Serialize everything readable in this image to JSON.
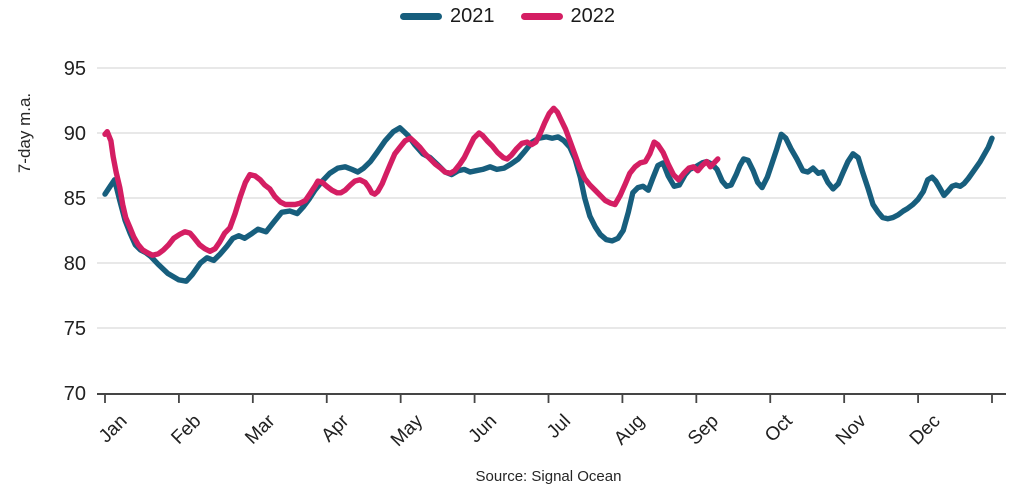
{
  "source": "Source: Signal Ocean",
  "chart_data": {
    "type": "line",
    "title": "",
    "xlabel": "",
    "ylabel": "7-day m.a.",
    "x_unit": "months (0 = start of Jan, 12 = end of Dec)",
    "x_tick_labels": [
      "Jan",
      "Feb",
      "Mar",
      "Apr",
      "May",
      "Jun",
      "Jul",
      "Aug",
      "Sep",
      "Oct",
      "Nov",
      "Dec"
    ],
    "y_ticks": [
      70,
      75,
      80,
      85,
      90,
      95
    ],
    "ylim": [
      70,
      95
    ],
    "xlim": [
      0,
      12
    ],
    "grid": "horizontal",
    "legend_position": "top-center",
    "colors": {
      "grid": "#D9D9D9",
      "axis": "#454545",
      "text": "#212121"
    },
    "series": [
      {
        "name": "2021",
        "color": "#175E7D",
        "points": [
          [
            0.0,
            85.3
          ],
          [
            0.07,
            85.9
          ],
          [
            0.13,
            86.4
          ],
          [
            0.2,
            84.8
          ],
          [
            0.27,
            83.3
          ],
          [
            0.34,
            82.3
          ],
          [
            0.41,
            81.4
          ],
          [
            0.48,
            81.0
          ],
          [
            0.55,
            80.8
          ],
          [
            0.62,
            80.5
          ],
          [
            0.72,
            79.9
          ],
          [
            0.85,
            79.2
          ],
          [
            1.0,
            78.7
          ],
          [
            1.1,
            78.6
          ],
          [
            1.18,
            79.1
          ],
          [
            1.29,
            80.0
          ],
          [
            1.38,
            80.4
          ],
          [
            1.47,
            80.2
          ],
          [
            1.56,
            80.7
          ],
          [
            1.65,
            81.3
          ],
          [
            1.73,
            81.9
          ],
          [
            1.81,
            82.1
          ],
          [
            1.89,
            81.9
          ],
          [
            1.97,
            82.2
          ],
          [
            2.07,
            82.6
          ],
          [
            2.18,
            82.4
          ],
          [
            2.29,
            83.2
          ],
          [
            2.39,
            83.9
          ],
          [
            2.5,
            84.0
          ],
          [
            2.6,
            83.8
          ],
          [
            2.68,
            84.3
          ],
          [
            2.76,
            84.9
          ],
          [
            2.84,
            85.6
          ],
          [
            2.94,
            86.3
          ],
          [
            3.04,
            86.9
          ],
          [
            3.15,
            87.3
          ],
          [
            3.25,
            87.4
          ],
          [
            3.34,
            87.2
          ],
          [
            3.42,
            87.0
          ],
          [
            3.5,
            87.3
          ],
          [
            3.59,
            87.8
          ],
          [
            3.68,
            88.5
          ],
          [
            3.79,
            89.4
          ],
          [
            3.9,
            90.1
          ],
          [
            3.99,
            90.4
          ],
          [
            4.1,
            89.8
          ],
          [
            4.19,
            89.1
          ],
          [
            4.3,
            88.4
          ],
          [
            4.4,
            88.1
          ],
          [
            4.51,
            87.5
          ],
          [
            4.6,
            87.0
          ],
          [
            4.69,
            86.8
          ],
          [
            4.78,
            87.1
          ],
          [
            4.86,
            87.2
          ],
          [
            4.94,
            87.0
          ],
          [
            5.02,
            87.1
          ],
          [
            5.11,
            87.2
          ],
          [
            5.21,
            87.4
          ],
          [
            5.3,
            87.2
          ],
          [
            5.4,
            87.3
          ],
          [
            5.49,
            87.6
          ],
          [
            5.59,
            88.0
          ],
          [
            5.68,
            88.6
          ],
          [
            5.78,
            89.3
          ],
          [
            5.87,
            89.6
          ],
          [
            5.97,
            89.7
          ],
          [
            6.05,
            89.6
          ],
          [
            6.13,
            89.7
          ],
          [
            6.21,
            89.4
          ],
          [
            6.29,
            88.9
          ],
          [
            6.36,
            88.0
          ],
          [
            6.43,
            86.6
          ],
          [
            6.49,
            85.0
          ],
          [
            6.56,
            83.6
          ],
          [
            6.63,
            82.8
          ],
          [
            6.7,
            82.2
          ],
          [
            6.78,
            81.8
          ],
          [
            6.86,
            81.7
          ],
          [
            6.94,
            81.9
          ],
          [
            7.01,
            82.5
          ],
          [
            7.08,
            83.9
          ],
          [
            7.14,
            85.4
          ],
          [
            7.21,
            85.8
          ],
          [
            7.28,
            85.9
          ],
          [
            7.35,
            85.6
          ],
          [
            7.41,
            86.5
          ],
          [
            7.48,
            87.5
          ],
          [
            7.55,
            87.7
          ],
          [
            7.62,
            86.7
          ],
          [
            7.7,
            85.9
          ],
          [
            7.77,
            86.0
          ],
          [
            7.85,
            86.8
          ],
          [
            7.91,
            87.2
          ],
          [
            7.99,
            87.4
          ],
          [
            8.08,
            87.7
          ],
          [
            8.14,
            87.8
          ],
          [
            8.21,
            87.6
          ],
          [
            8.28,
            87.2
          ],
          [
            8.35,
            86.3
          ],
          [
            8.41,
            85.9
          ],
          [
            8.47,
            86.0
          ],
          [
            8.54,
            86.8
          ],
          [
            8.59,
            87.5
          ],
          [
            8.64,
            88.0
          ],
          [
            8.7,
            87.9
          ],
          [
            8.77,
            87.1
          ],
          [
            8.83,
            86.2
          ],
          [
            8.89,
            85.8
          ],
          [
            8.96,
            86.6
          ],
          [
            9.02,
            87.6
          ],
          [
            9.09,
            88.8
          ],
          [
            9.15,
            89.9
          ],
          [
            9.21,
            89.6
          ],
          [
            9.28,
            88.8
          ],
          [
            9.36,
            88.0
          ],
          [
            9.44,
            87.1
          ],
          [
            9.51,
            87.0
          ],
          [
            9.58,
            87.3
          ],
          [
            9.65,
            86.9
          ],
          [
            9.71,
            87.0
          ],
          [
            9.78,
            86.2
          ],
          [
            9.85,
            85.7
          ],
          [
            9.92,
            86.1
          ],
          [
            9.98,
            86.9
          ],
          [
            10.05,
            87.8
          ],
          [
            10.12,
            88.4
          ],
          [
            10.19,
            88.1
          ],
          [
            10.25,
            87.0
          ],
          [
            10.32,
            85.8
          ],
          [
            10.39,
            84.5
          ],
          [
            10.46,
            83.9
          ],
          [
            10.52,
            83.5
          ],
          [
            10.59,
            83.4
          ],
          [
            10.66,
            83.5
          ],
          [
            10.73,
            83.7
          ],
          [
            10.8,
            84.0
          ],
          [
            10.86,
            84.2
          ],
          [
            10.93,
            84.5
          ],
          [
            11.0,
            84.9
          ],
          [
            11.07,
            85.5
          ],
          [
            11.13,
            86.4
          ],
          [
            11.19,
            86.6
          ],
          [
            11.24,
            86.3
          ],
          [
            11.3,
            85.7
          ],
          [
            11.35,
            85.2
          ],
          [
            11.4,
            85.5
          ],
          [
            11.46,
            85.9
          ],
          [
            11.51,
            86.0
          ],
          [
            11.57,
            85.9
          ],
          [
            11.62,
            86.1
          ],
          [
            11.68,
            86.5
          ],
          [
            11.73,
            86.9
          ],
          [
            11.78,
            87.3
          ],
          [
            11.84,
            87.8
          ],
          [
            11.89,
            88.3
          ],
          [
            11.95,
            88.9
          ],
          [
            12.0,
            89.6
          ]
        ]
      },
      {
        "name": "2022",
        "color": "#D41E63",
        "points": [
          [
            0.0,
            89.9
          ],
          [
            0.03,
            90.1
          ],
          [
            0.08,
            89.4
          ],
          [
            0.11,
            88.2
          ],
          [
            0.15,
            87.0
          ],
          [
            0.2,
            85.8
          ],
          [
            0.24,
            84.5
          ],
          [
            0.28,
            83.5
          ],
          [
            0.34,
            82.7
          ],
          [
            0.39,
            82.0
          ],
          [
            0.45,
            81.4
          ],
          [
            0.51,
            81.0
          ],
          [
            0.57,
            80.8
          ],
          [
            0.64,
            80.6
          ],
          [
            0.72,
            80.7
          ],
          [
            0.79,
            81.0
          ],
          [
            0.86,
            81.4
          ],
          [
            0.93,
            81.9
          ],
          [
            1.01,
            82.2
          ],
          [
            1.08,
            82.4
          ],
          [
            1.15,
            82.3
          ],
          [
            1.21,
            81.9
          ],
          [
            1.28,
            81.4
          ],
          [
            1.35,
            81.1
          ],
          [
            1.42,
            80.9
          ],
          [
            1.49,
            81.1
          ],
          [
            1.55,
            81.6
          ],
          [
            1.62,
            82.3
          ],
          [
            1.69,
            82.7
          ],
          [
            1.76,
            83.8
          ],
          [
            1.83,
            85.1
          ],
          [
            1.9,
            86.2
          ],
          [
            1.96,
            86.8
          ],
          [
            2.03,
            86.7
          ],
          [
            2.1,
            86.4
          ],
          [
            2.16,
            86.0
          ],
          [
            2.23,
            85.7
          ],
          [
            2.3,
            85.1
          ],
          [
            2.37,
            84.7
          ],
          [
            2.44,
            84.5
          ],
          [
            2.57,
            84.5
          ],
          [
            2.64,
            84.6
          ],
          [
            2.71,
            84.8
          ],
          [
            2.77,
            85.3
          ],
          [
            2.84,
            85.9
          ],
          [
            2.88,
            86.3
          ],
          [
            2.94,
            86.2
          ],
          [
            3.0,
            85.9
          ],
          [
            3.07,
            85.6
          ],
          [
            3.14,
            85.4
          ],
          [
            3.19,
            85.4
          ],
          [
            3.25,
            85.6
          ],
          [
            3.32,
            86.0
          ],
          [
            3.38,
            86.3
          ],
          [
            3.45,
            86.4
          ],
          [
            3.52,
            86.2
          ],
          [
            3.57,
            85.8
          ],
          [
            3.61,
            85.4
          ],
          [
            3.65,
            85.3
          ],
          [
            3.69,
            85.5
          ],
          [
            3.75,
            86.1
          ],
          [
            3.8,
            86.8
          ],
          [
            3.86,
            87.6
          ],
          [
            3.92,
            88.4
          ],
          [
            3.99,
            88.9
          ],
          [
            4.06,
            89.4
          ],
          [
            4.13,
            89.6
          ],
          [
            4.19,
            89.3
          ],
          [
            4.26,
            88.9
          ],
          [
            4.33,
            88.4
          ],
          [
            4.4,
            88.0
          ],
          [
            4.47,
            87.6
          ],
          [
            4.54,
            87.3
          ],
          [
            4.6,
            87.0
          ],
          [
            4.67,
            86.9
          ],
          [
            4.73,
            87.1
          ],
          [
            4.8,
            87.6
          ],
          [
            4.86,
            88.1
          ],
          [
            4.92,
            88.8
          ],
          [
            4.99,
            89.6
          ],
          [
            5.06,
            90.0
          ],
          [
            5.11,
            89.8
          ],
          [
            5.17,
            89.4
          ],
          [
            5.24,
            89.0
          ],
          [
            5.31,
            88.5
          ],
          [
            5.39,
            88.1
          ],
          [
            5.44,
            88.0
          ],
          [
            5.5,
            88.3
          ],
          [
            5.57,
            88.8
          ],
          [
            5.64,
            89.2
          ],
          [
            5.71,
            89.3
          ],
          [
            5.77,
            89.1
          ],
          [
            5.83,
            89.3
          ],
          [
            5.89,
            90.0
          ],
          [
            5.95,
            90.8
          ],
          [
            6.01,
            91.5
          ],
          [
            6.07,
            91.9
          ],
          [
            6.12,
            91.6
          ],
          [
            6.17,
            91.0
          ],
          [
            6.23,
            90.3
          ],
          [
            6.29,
            89.4
          ],
          [
            6.36,
            88.3
          ],
          [
            6.43,
            87.2
          ],
          [
            6.49,
            86.5
          ],
          [
            6.56,
            86.0
          ],
          [
            6.63,
            85.6
          ],
          [
            6.7,
            85.2
          ],
          [
            6.77,
            84.8
          ],
          [
            6.84,
            84.6
          ],
          [
            6.9,
            84.5
          ],
          [
            6.97,
            85.2
          ],
          [
            7.04,
            86.1
          ],
          [
            7.1,
            86.9
          ],
          [
            7.17,
            87.4
          ],
          [
            7.24,
            87.7
          ],
          [
            7.31,
            87.8
          ],
          [
            7.37,
            88.4
          ],
          [
            7.43,
            89.3
          ],
          [
            7.48,
            89.1
          ],
          [
            7.55,
            88.5
          ],
          [
            7.62,
            87.6
          ],
          [
            7.69,
            86.8
          ],
          [
            7.76,
            86.4
          ],
          [
            7.83,
            86.9
          ],
          [
            7.9,
            87.3
          ],
          [
            7.96,
            87.4
          ],
          [
            8.02,
            87.1
          ],
          [
            8.08,
            87.5
          ],
          [
            8.14,
            87.8
          ],
          [
            8.19,
            87.4
          ],
          [
            8.24,
            87.7
          ],
          [
            8.29,
            88.0
          ]
        ]
      }
    ]
  }
}
